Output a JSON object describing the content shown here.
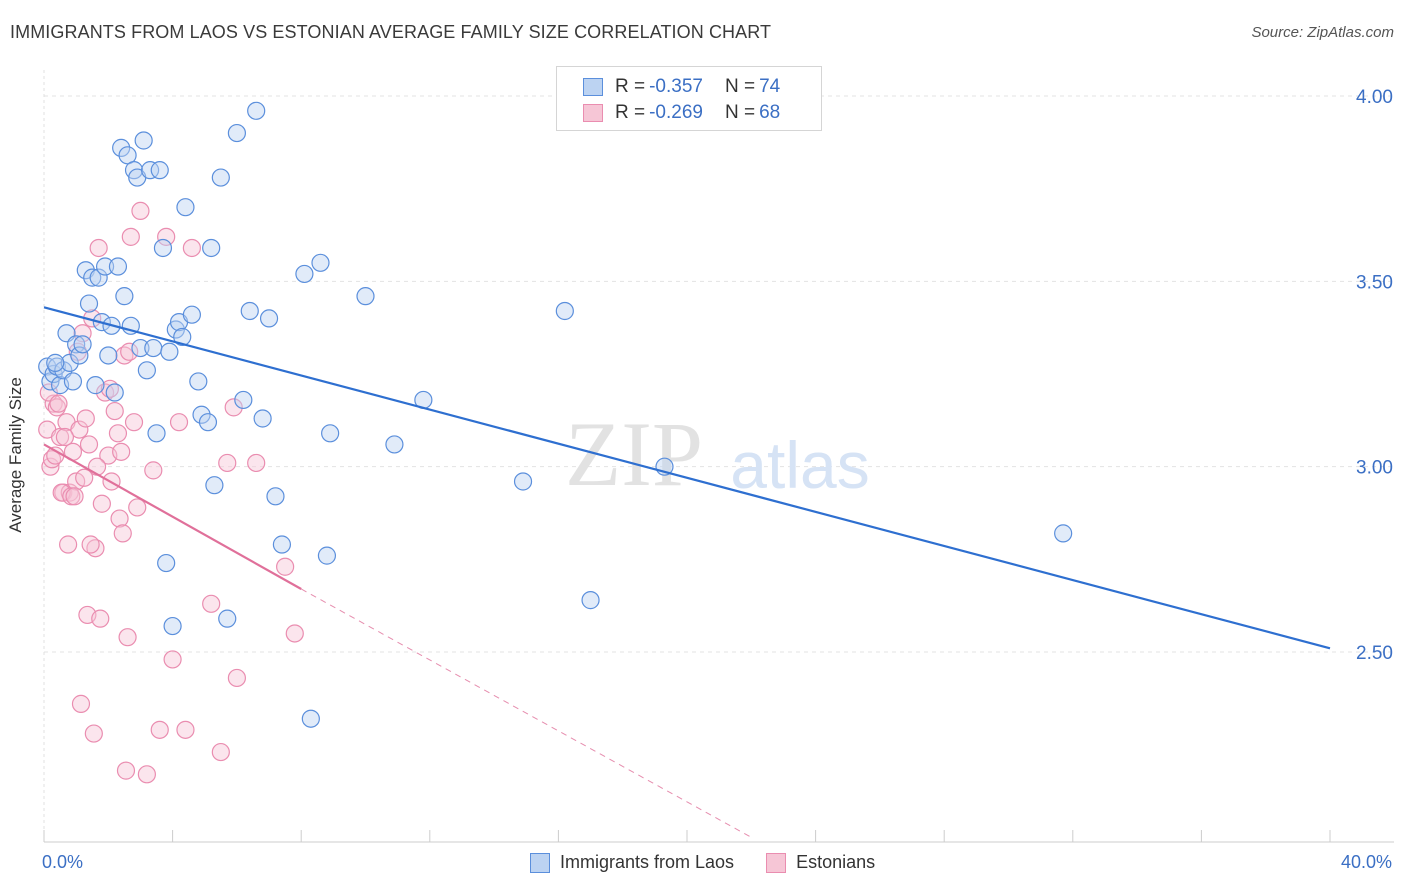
{
  "title": "IMMIGRANTS FROM LAOS VS ESTONIAN AVERAGE FAMILY SIZE CORRELATION CHART",
  "source": "Source: ZipAtlas.com",
  "watermark": {
    "zip": "ZIP",
    "atlas": "atlas"
  },
  "legend": {
    "blue": {
      "r_label": "R =",
      "r_value": "-0.357",
      "n_label": "N =",
      "n_value": "74"
    },
    "pink": {
      "r_label": "R =",
      "r_value": "-0.269",
      "n_label": "N =",
      "n_value": "68"
    }
  },
  "bottom_legend": {
    "blue": "Immigrants from Laos",
    "pink": "Estonians"
  },
  "colors": {
    "blue": "#5b8fdc",
    "blue_fill": "#bcd3f2",
    "blue_line": "#2e6fd0",
    "pink": "#ea8db0",
    "pink_fill": "#f6c6d6",
    "pink_line": "#e0709a",
    "grid": "#e3e3e3",
    "tick_label": "#3b6fc4"
  },
  "chart_data": {
    "type": "scatter",
    "xlabel": "",
    "ylabel": "Average Family Size",
    "xlim": [
      0,
      40
    ],
    "ylim": [
      2.0,
      4.1
    ],
    "x_tick_labels": [
      "0.0%",
      "40.0%"
    ],
    "y_ticks": [
      2.5,
      3.0,
      3.5,
      4.0
    ],
    "y_tick_labels": [
      "2.50",
      "3.00",
      "3.50",
      "4.00"
    ],
    "grid": true,
    "legend_position": "top-center",
    "series": [
      {
        "name": "Immigrants from Laos",
        "color": "blue",
        "trend": {
          "x": [
            0,
            40
          ],
          "y": [
            3.43,
            2.51
          ]
        },
        "points": [
          [
            0.1,
            3.27
          ],
          [
            0.2,
            3.23
          ],
          [
            0.3,
            3.25
          ],
          [
            0.4,
            3.27
          ],
          [
            0.5,
            3.22
          ],
          [
            0.6,
            3.26
          ],
          [
            0.7,
            3.36
          ],
          [
            0.8,
            3.28
          ],
          [
            0.9,
            3.23
          ],
          [
            1.0,
            3.33
          ],
          [
            1.1,
            3.3
          ],
          [
            1.2,
            3.33
          ],
          [
            1.3,
            3.53
          ],
          [
            1.4,
            3.44
          ],
          [
            1.5,
            3.51
          ],
          [
            1.6,
            3.22
          ],
          [
            1.7,
            3.51
          ],
          [
            1.8,
            3.39
          ],
          [
            1.9,
            3.54
          ],
          [
            2.0,
            3.3
          ],
          [
            2.1,
            3.38
          ],
          [
            2.2,
            3.2
          ],
          [
            2.3,
            3.54
          ],
          [
            2.4,
            3.86
          ],
          [
            2.5,
            3.46
          ],
          [
            2.6,
            3.84
          ],
          [
            2.7,
            3.38
          ],
          [
            2.8,
            3.8
          ],
          [
            2.9,
            3.78
          ],
          [
            3.0,
            3.32
          ],
          [
            3.1,
            3.88
          ],
          [
            3.2,
            3.26
          ],
          [
            3.3,
            3.8
          ],
          [
            3.4,
            3.32
          ],
          [
            3.5,
            3.09
          ],
          [
            3.6,
            3.8
          ],
          [
            3.7,
            3.59
          ],
          [
            3.8,
            2.74
          ],
          [
            3.9,
            3.31
          ],
          [
            4.0,
            2.57
          ],
          [
            4.1,
            3.37
          ],
          [
            4.2,
            3.39
          ],
          [
            4.3,
            3.35
          ],
          [
            4.4,
            3.7
          ],
          [
            4.6,
            3.41
          ],
          [
            4.8,
            3.23
          ],
          [
            4.9,
            3.14
          ],
          [
            5.1,
            3.12
          ],
          [
            5.2,
            3.59
          ],
          [
            5.3,
            2.95
          ],
          [
            5.5,
            3.78
          ],
          [
            5.7,
            2.59
          ],
          [
            6.0,
            3.9
          ],
          [
            6.2,
            3.18
          ],
          [
            6.4,
            3.42
          ],
          [
            6.6,
            3.96
          ],
          [
            6.8,
            3.13
          ],
          [
            7.0,
            3.4
          ],
          [
            7.2,
            2.92
          ],
          [
            7.4,
            2.79
          ],
          [
            8.1,
            3.52
          ],
          [
            8.3,
            2.32
          ],
          [
            8.6,
            3.55
          ],
          [
            8.8,
            2.76
          ],
          [
            8.9,
            3.09
          ],
          [
            10.0,
            3.46
          ],
          [
            10.9,
            3.06
          ],
          [
            11.8,
            3.18
          ],
          [
            14.9,
            2.96
          ],
          [
            16.2,
            3.42
          ],
          [
            17.0,
            2.64
          ],
          [
            19.3,
            3.0
          ],
          [
            31.7,
            2.82
          ],
          [
            0.35,
            3.28
          ]
        ]
      },
      {
        "name": "Estonians",
        "color": "pink",
        "trend": {
          "x": [
            0,
            8.0
          ],
          "y": [
            3.06,
            2.67
          ]
        },
        "trend_dashed": {
          "x": [
            8.0,
            22.0
          ],
          "y": [
            2.67,
            2.0
          ]
        },
        "points": [
          [
            0.1,
            3.1
          ],
          [
            0.2,
            3.0
          ],
          [
            0.3,
            3.17
          ],
          [
            0.4,
            3.16
          ],
          [
            0.5,
            3.08
          ],
          [
            0.6,
            2.93
          ],
          [
            0.7,
            3.12
          ],
          [
            0.8,
            2.93
          ],
          [
            0.9,
            3.04
          ],
          [
            1.0,
            2.96
          ],
          [
            1.1,
            3.1
          ],
          [
            1.2,
            3.36
          ],
          [
            1.3,
            3.13
          ],
          [
            1.4,
            3.06
          ],
          [
            1.5,
            3.4
          ],
          [
            1.6,
            2.78
          ],
          [
            1.7,
            3.59
          ],
          [
            1.8,
            2.9
          ],
          [
            1.9,
            3.2
          ],
          [
            2.0,
            3.03
          ],
          [
            2.1,
            2.96
          ],
          [
            2.2,
            3.15
          ],
          [
            2.3,
            3.09
          ],
          [
            2.4,
            3.04
          ],
          [
            2.5,
            3.3
          ],
          [
            2.6,
            2.54
          ],
          [
            2.7,
            3.62
          ],
          [
            2.8,
            3.12
          ],
          [
            2.9,
            2.89
          ],
          [
            3.0,
            3.69
          ],
          [
            3.2,
            2.17
          ],
          [
            3.4,
            2.99
          ],
          [
            3.6,
            2.29
          ],
          [
            3.8,
            3.62
          ],
          [
            4.0,
            2.48
          ],
          [
            4.2,
            3.12
          ],
          [
            4.4,
            2.29
          ],
          [
            4.6,
            3.59
          ],
          [
            5.2,
            2.63
          ],
          [
            5.5,
            2.23
          ],
          [
            5.7,
            3.01
          ],
          [
            5.9,
            3.16
          ],
          [
            6.0,
            2.43
          ],
          [
            6.6,
            3.01
          ],
          [
            7.5,
            2.73
          ],
          [
            7.8,
            2.55
          ],
          [
            0.15,
            3.2
          ],
          [
            0.25,
            3.02
          ],
          [
            0.35,
            3.03
          ],
          [
            0.45,
            3.17
          ],
          [
            0.55,
            2.93
          ],
          [
            0.65,
            3.08
          ],
          [
            0.75,
            2.79
          ],
          [
            0.85,
            2.92
          ],
          [
            0.95,
            2.92
          ],
          [
            1.05,
            3.31
          ],
          [
            1.15,
            2.36
          ],
          [
            1.25,
            2.97
          ],
          [
            1.35,
            2.6
          ],
          [
            1.45,
            2.79
          ],
          [
            1.55,
            2.28
          ],
          [
            1.65,
            3.0
          ],
          [
            1.75,
            2.59
          ],
          [
            2.05,
            3.21
          ],
          [
            2.35,
            2.86
          ],
          [
            2.45,
            2.82
          ],
          [
            2.55,
            2.18
          ],
          [
            2.65,
            3.31
          ]
        ]
      }
    ]
  }
}
